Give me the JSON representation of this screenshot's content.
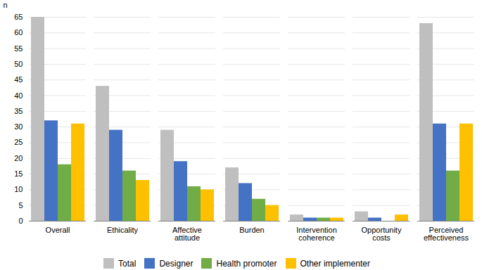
{
  "chart_data": {
    "type": "bar",
    "categories": [
      "Overall",
      "Ethicality",
      "Affective\nattitude",
      "Burden",
      "Intervention\ncoherence",
      "Opportunity\ncosts",
      "Perceived\neffectiveness"
    ],
    "series": [
      {
        "name": "Total",
        "color": "#bfbfbf",
        "values": [
          65,
          43,
          29,
          17,
          2,
          3,
          63
        ]
      },
      {
        "name": "Designer",
        "color": "#4472c4",
        "values": [
          32,
          29,
          19,
          12,
          1,
          1,
          31
        ]
      },
      {
        "name": "Health promoter",
        "color": "#70ad47",
        "values": [
          18,
          16,
          11,
          7,
          1,
          0,
          16
        ]
      },
      {
        "name": "Other implementer",
        "color": "#ffc000",
        "values": [
          31,
          13,
          10,
          5,
          1,
          2,
          31
        ]
      }
    ],
    "ylabel": "n",
    "ylim": [
      0,
      65
    ],
    "yticks": [
      0,
      5,
      10,
      15,
      20,
      25,
      30,
      35,
      40,
      45,
      50,
      55,
      60,
      65
    ],
    "grid": true,
    "legend": "bottom"
  }
}
